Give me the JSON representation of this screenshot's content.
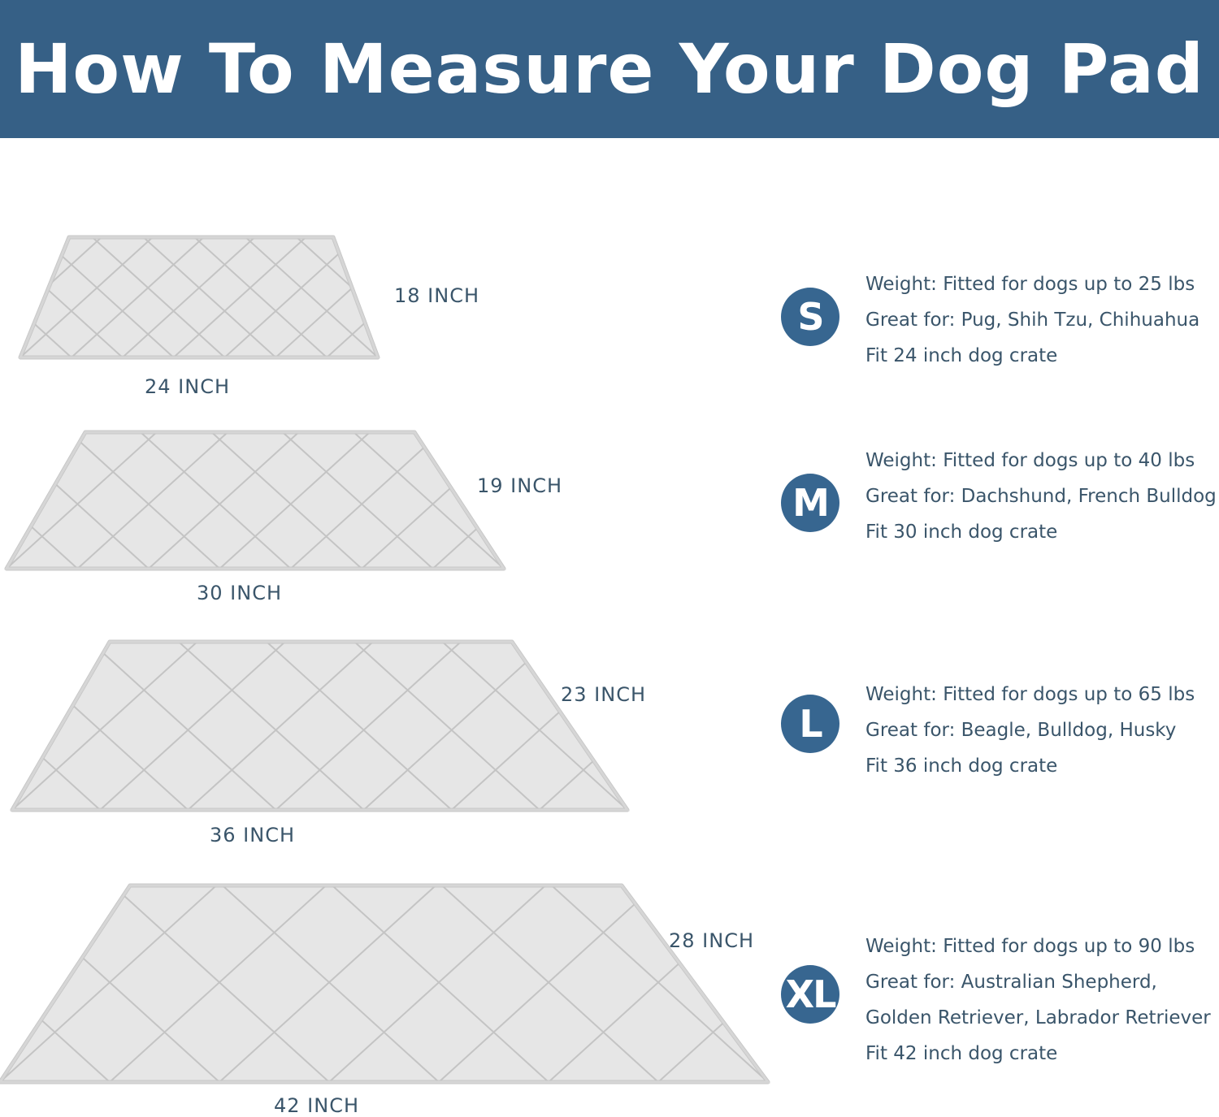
{
  "title": "How To Measure Your Dog Pad",
  "colors": {
    "header": "#366086",
    "badge": "#376690",
    "text": "#3a556a",
    "pad": "#e6e6e6"
  },
  "sizes": [
    {
      "badge": "S",
      "width_label": "24 INCH",
      "height_label": "18 INCH",
      "lines": [
        "Weight: Fitted for dogs up to 25 lbs",
        "Great for: Pug, Shih Tzu, Chihuahua",
        "Fit 24 inch dog crate"
      ]
    },
    {
      "badge": "M",
      "width_label": "30 INCH",
      "height_label": "19 INCH",
      "lines": [
        "Weight: Fitted for dogs up to 40 lbs",
        "Great for: Dachshund, French Bulldog",
        "Fit 30 inch dog crate"
      ]
    },
    {
      "badge": "L",
      "width_label": "36 INCH",
      "height_label": "23 INCH",
      "lines": [
        "Weight: Fitted for dogs up to 65 lbs",
        "Great for: Beagle, Bulldog, Husky",
        "Fit 36 inch dog crate"
      ]
    },
    {
      "badge": "XL",
      "width_label": "42 INCH",
      "height_label": "28 INCH",
      "lines": [
        "Weight: Fitted for dogs up to 90 lbs",
        "Great for: Australian Shepherd,",
        "Golden Retriever, Labrador Retriever",
        "Fit 42 inch dog crate"
      ]
    }
  ]
}
